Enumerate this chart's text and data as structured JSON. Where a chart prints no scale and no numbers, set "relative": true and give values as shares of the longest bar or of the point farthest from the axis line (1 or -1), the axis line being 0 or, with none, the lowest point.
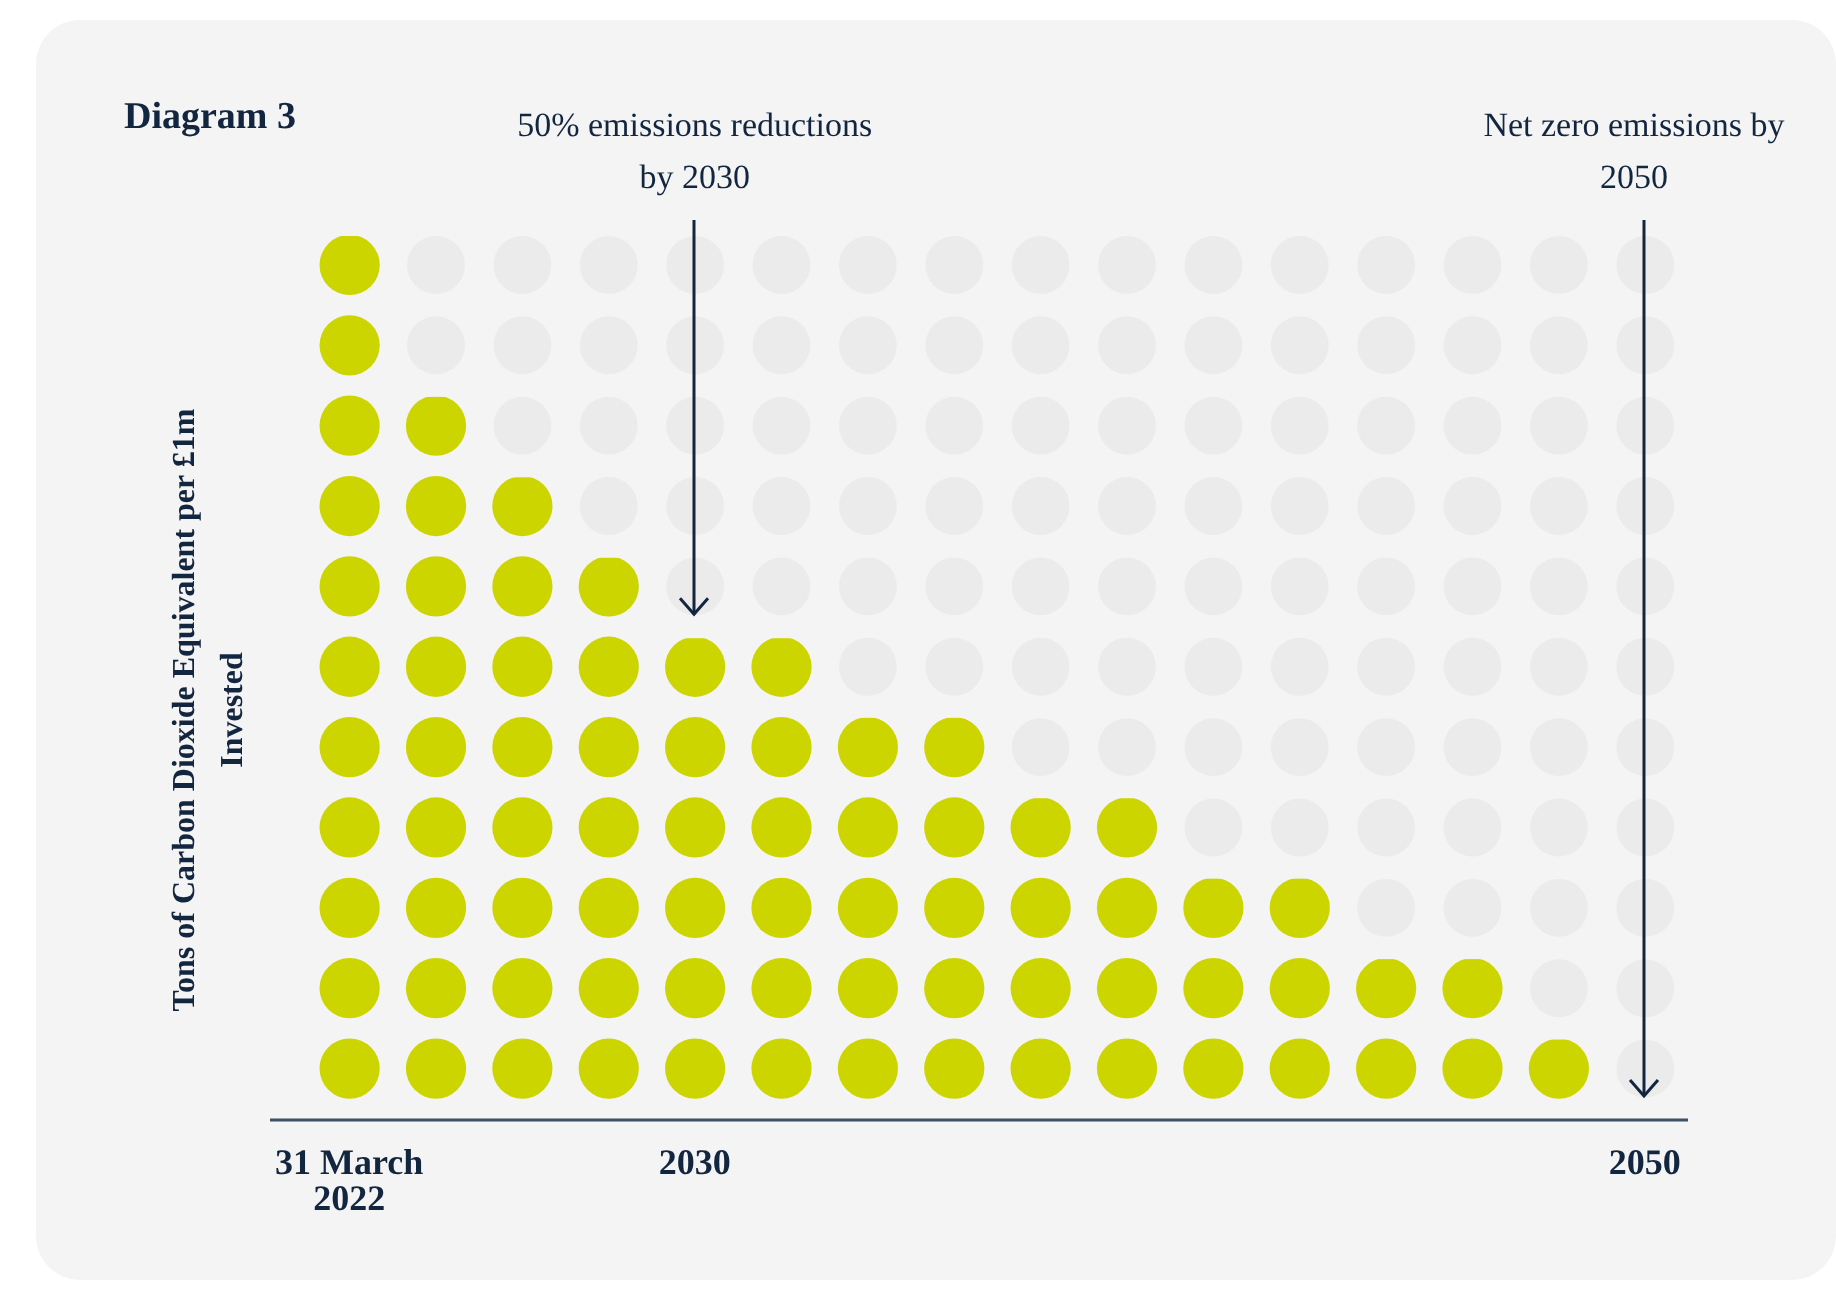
{
  "chart_data": {
    "type": "bar",
    "relative": true,
    "title": "Diagram 3",
    "ylabel": "Tons of Carbon Dioxide Equivalent per £1m Invested",
    "categories": [
      "31 March 2022",
      null,
      null,
      null,
      "2030",
      null,
      null,
      null,
      null,
      null,
      null,
      null,
      null,
      null,
      null,
      "2050"
    ],
    "values": [
      1,
      0.818,
      0.727,
      0.636,
      0.545,
      0.545,
      0.455,
      0.455,
      0.364,
      0.364,
      0.273,
      0.273,
      0.182,
      0.182,
      0.091,
      0
    ],
    "color": "#cdd500",
    "annotations": [
      {
        "text": "50% emissions reductions by 2030",
        "x": "2030"
      },
      {
        "text": "Net zero emissions by 2050",
        "x": "2050"
      }
    ]
  }
}
